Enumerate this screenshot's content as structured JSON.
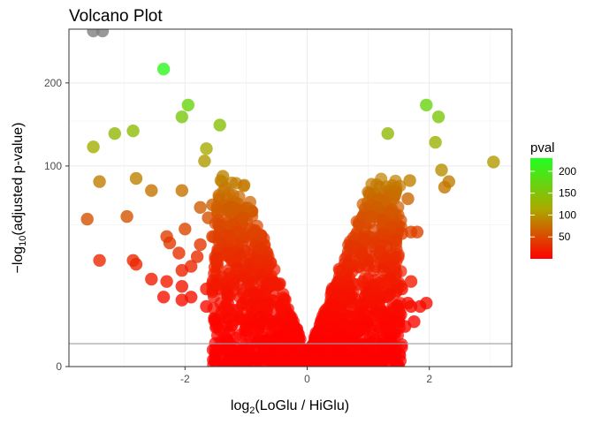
{
  "chart_data": {
    "type": "scatter",
    "title": "Volcano Plot",
    "xlabel": {
      "prefix": "log",
      "sub": "2",
      "body": "(LoGlu / HiGlu)"
    },
    "ylabel": {
      "prefix": "−log",
      "sub": "10",
      "body": "(adjusted p-value)"
    },
    "xlim": [
      -3.9,
      3.35
    ],
    "y_scale": "sqrt",
    "ylim": [
      0,
      283
    ],
    "x_ticks": [
      -2,
      0,
      2
    ],
    "x_tick_labels": [
      "-2",
      "0",
      "2"
    ],
    "y_ticks": [
      0,
      100,
      200
    ],
    "y_tick_labels": [
      "0",
      "100",
      "200"
    ],
    "significance_line": 1.3,
    "grid": true,
    "legend": {
      "title": "pval",
      "placement": "right",
      "ticks": [
        50,
        100,
        150,
        200
      ],
      "tick_labels": [
        "50",
        "100",
        "150",
        "200"
      ],
      "range": [
        0,
        230
      ],
      "colors": {
        "low": "#ff0000",
        "mid": "#aaaa00",
        "high": "#22ff22"
      }
    },
    "points": [
      [
        -3.5,
        280
      ],
      [
        -3.35,
        280
      ],
      [
        -2.35,
        220
      ],
      [
        -1.95,
        170
      ],
      [
        -2.05,
        155
      ],
      [
        -1.43,
        145
      ],
      [
        -2.85,
        138
      ],
      [
        -3.15,
        135
      ],
      [
        -3.5,
        120
      ],
      [
        -1.65,
        118
      ],
      [
        -1.68,
        105
      ],
      [
        -1.38,
        90
      ],
      [
        -2.8,
        88
      ],
      [
        -3.4,
        85
      ],
      [
        -2.55,
        77
      ],
      [
        -2.05,
        77
      ],
      [
        -1.55,
        65
      ],
      [
        -1.25,
        63
      ],
      [
        -1.75,
        63
      ],
      [
        -3.6,
        54
      ],
      [
        -2.95,
        56
      ],
      [
        -1.62,
        55
      ],
      [
        -1.05,
        55
      ],
      [
        -1.45,
        50
      ],
      [
        -1.1,
        45
      ],
      [
        -2.0,
        47
      ],
      [
        -0.85,
        45
      ],
      [
        -2.3,
        42
      ],
      [
        -1.55,
        42
      ],
      [
        -1.25,
        41
      ],
      [
        -2.25,
        38
      ],
      [
        -1.75,
        37
      ],
      [
        -2.1,
        32
      ],
      [
        -1.3,
        32
      ],
      [
        -1.8,
        30
      ],
      [
        -3.4,
        28
      ],
      [
        -2.85,
        28
      ],
      [
        -2.8,
        26
      ],
      [
        -1.9,
        25
      ],
      [
        -2.05,
        23
      ],
      [
        -1.15,
        24
      ],
      [
        -2.55,
        19
      ],
      [
        -2.3,
        18
      ],
      [
        -1.55,
        17
      ],
      [
        -2.05,
        16
      ],
      [
        -1.65,
        15
      ],
      [
        -2.35,
        12
      ],
      [
        -1.9,
        12
      ],
      [
        -1.3,
        12
      ],
      [
        -2.05,
        11
      ],
      [
        -1.3,
        10
      ],
      [
        -1.05,
        10
      ],
      [
        -1.65,
        9
      ],
      [
        1.95,
        170
      ],
      [
        2.15,
        155
      ],
      [
        1.32,
        135
      ],
      [
        2.1,
        125
      ],
      [
        3.05,
        104
      ],
      [
        2.2,
        96
      ],
      [
        1.68,
        86
      ],
      [
        2.32,
        85
      ],
      [
        2.25,
        80
      ],
      [
        1.45,
        76
      ],
      [
        1.35,
        72
      ],
      [
        1.65,
        70
      ],
      [
        1.25,
        68
      ],
      [
        1.05,
        65
      ],
      [
        1.15,
        63
      ],
      [
        0.95,
        62
      ],
      [
        1.35,
        58
      ],
      [
        1.05,
        56
      ],
      [
        0.9,
        55
      ],
      [
        1.25,
        53
      ],
      [
        0.85,
        50
      ],
      [
        1.4,
        48
      ],
      [
        1.7,
        45
      ],
      [
        1.8,
        45
      ],
      [
        1.55,
        44
      ],
      [
        1.25,
        44
      ],
      [
        0.8,
        43
      ],
      [
        1.45,
        40
      ],
      [
        0.95,
        40
      ],
      [
        1.1,
        38
      ],
      [
        1.3,
        36
      ],
      [
        0.75,
        36
      ],
      [
        1.2,
        33
      ],
      [
        0.9,
        32
      ],
      [
        1.3,
        29
      ],
      [
        0.7,
        28
      ],
      [
        1.35,
        25
      ],
      [
        1.25,
        23
      ],
      [
        1.35,
        19
      ],
      [
        1.7,
        18
      ],
      [
        1.3,
        18
      ],
      [
        1.55,
        15
      ],
      [
        1.15,
        14
      ],
      [
        1.35,
        13
      ],
      [
        1.65,
        10
      ],
      [
        1.95,
        10
      ],
      [
        1.7,
        9
      ],
      [
        1.85,
        9
      ],
      [
        1.45,
        8
      ],
      [
        1.25,
        7
      ],
      [
        1.35,
        6
      ],
      [
        1.5,
        5
      ],
      [
        1.75,
        5
      ],
      [
        1.6,
        4
      ]
    ]
  }
}
